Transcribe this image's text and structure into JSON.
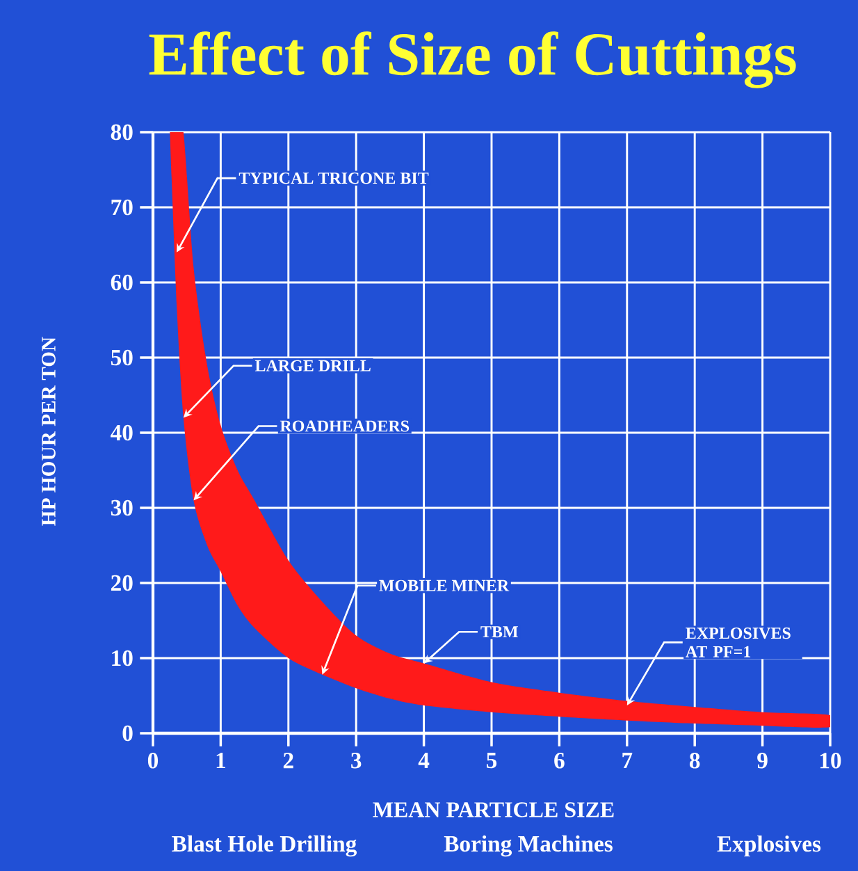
{
  "chart_data": {
    "type": "line",
    "title": "Effect of Size of Cuttings",
    "xlabel": "MEAN PARTICLE SIZE",
    "ylabel": "HP HOUR PER TON",
    "xlim": [
      0,
      10
    ],
    "ylim": [
      0,
      80
    ],
    "xticks": [
      0,
      1,
      2,
      3,
      4,
      5,
      6,
      7,
      8,
      9,
      10
    ],
    "yticks": [
      0,
      10,
      20,
      30,
      40,
      50,
      60,
      70,
      80
    ],
    "grid": true,
    "series": [
      {
        "color": "#ff1a1a",
        "x": [
          0.25,
          0.35,
          0.45,
          0.6,
          0.8,
          1,
          1.25,
          1.5,
          2,
          2.5,
          3,
          3.5,
          4,
          5,
          6,
          7,
          8,
          9,
          10
        ],
        "values": [
          null,
          null,
          null,
          null,
          null,
          null,
          null,
          null,
          null,
          null,
          null,
          null,
          null,
          null,
          null,
          null,
          null,
          null,
          null
        ],
        "upper": [
          80,
          80,
          80,
          62,
          49,
          41,
          35,
          31,
          23,
          17.5,
          13,
          10.6,
          9.3,
          6.8,
          5.4,
          4.3,
          3.5,
          2.8,
          2.4
        ],
        "lower": [
          80,
          57,
          42,
          31,
          25,
          21.5,
          17,
          14,
          10,
          7.8,
          6,
          4.6,
          3.7,
          2.8,
          2.2,
          1.7,
          1.3,
          1.0,
          0.8
        ]
      }
    ],
    "annotations": [
      {
        "text": "TYPICAL TRICONE BIT",
        "x": 0.35,
        "y": 64
      },
      {
        "text": "LARGE DRILL",
        "x": 0.45,
        "y": 42
      },
      {
        "text": "ROADHEADERS",
        "x": 0.6,
        "y": 31
      },
      {
        "text": "MOBILE MINER",
        "x": 2.5,
        "y": 7.8
      },
      {
        "text": "TBM",
        "x": 4,
        "y": 9.3
      },
      {
        "text": "EXPLOSIVES AT PF=1",
        "x": 7,
        "y": 3.7
      },
      "Blast Hole Drilling",
      "Boring Machines",
      "Explosives"
    ]
  }
}
